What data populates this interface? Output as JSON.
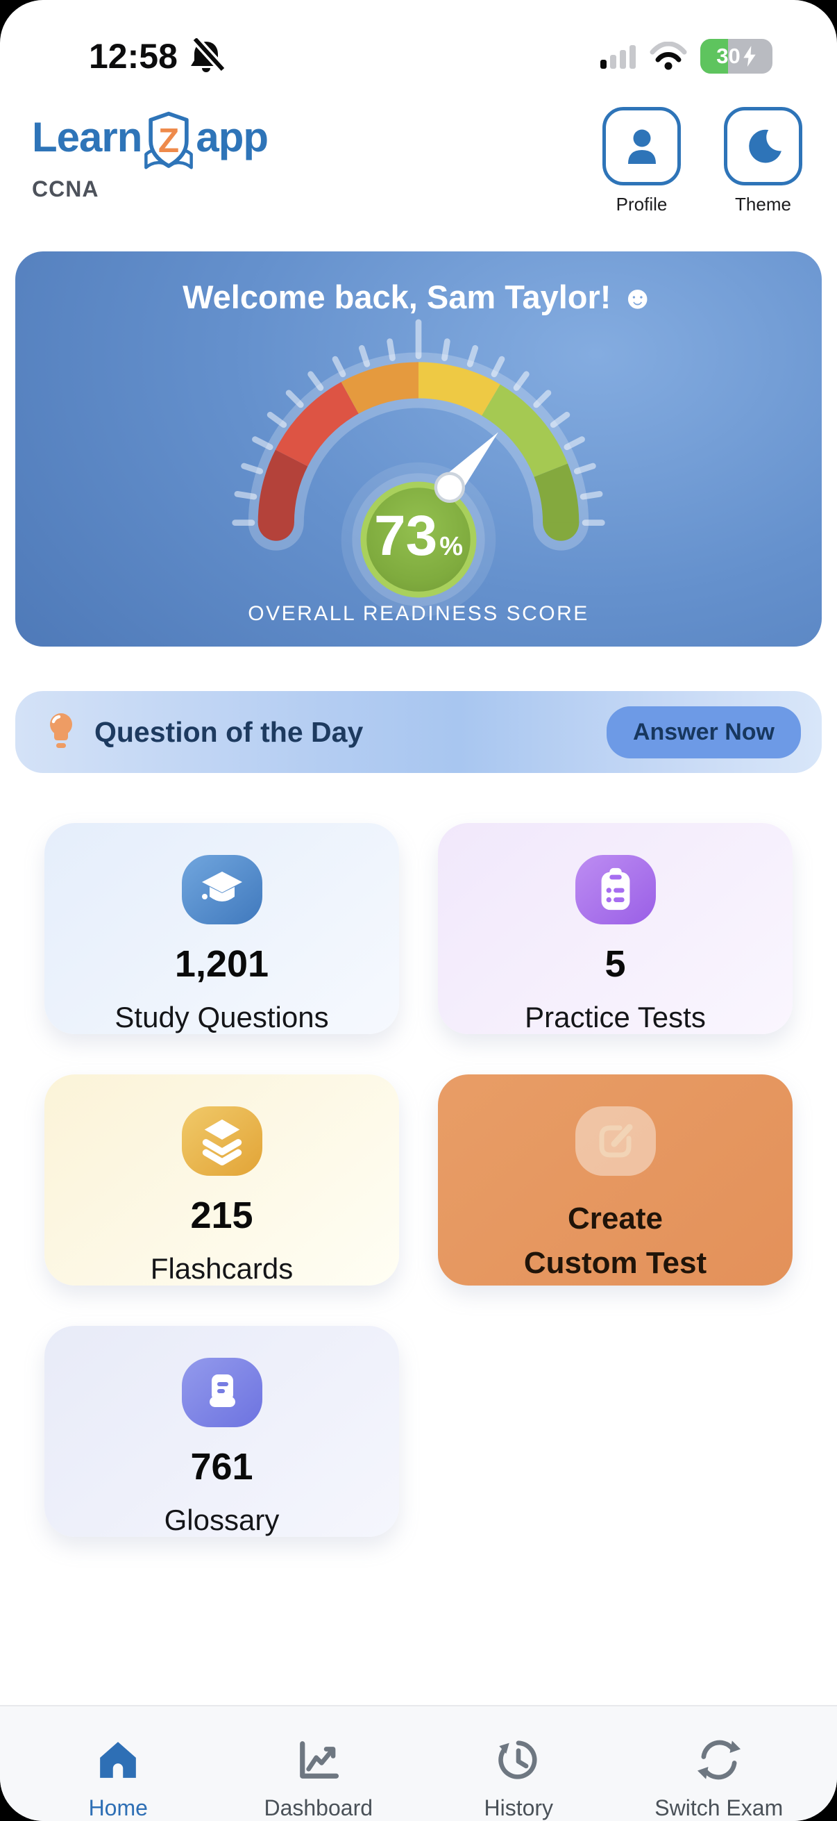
{
  "status_bar": {
    "time": "12:58",
    "battery_percent": "30"
  },
  "header": {
    "logo_part1": "Learn",
    "logo_z": "Z",
    "logo_part2": "app",
    "exam_name": "CCNA",
    "profile_label": "Profile",
    "theme_label": "Theme"
  },
  "welcome": {
    "title": "Welcome back, Sam Taylor!",
    "emoji": "☻"
  },
  "chart_data": {
    "type": "gauge",
    "title": "OVERALL READINESS SCORE",
    "value": 73,
    "unit": "%",
    "min": 0,
    "max": 100,
    "ticks": 21,
    "segments": [
      {
        "to": 15,
        "color": "#b4423a"
      },
      {
        "to": 34,
        "color": "#dd5444"
      },
      {
        "to": 50,
        "color": "#e59a3e"
      },
      {
        "to": 67,
        "color": "#eec944"
      },
      {
        "to": 88,
        "color": "#a5c952"
      },
      {
        "to": 100,
        "color": "#84a93e"
      }
    ]
  },
  "question_of_day": {
    "title": "Question of the Day",
    "button_label": "Answer Now"
  },
  "cards": [
    {
      "value": "1,201",
      "label": "Study Questions"
    },
    {
      "value": "5",
      "label": "Practice Tests"
    },
    {
      "value": "215",
      "label": "Flashcards"
    },
    {
      "label_line1": "Create",
      "label_line2": "Custom Test"
    },
    {
      "value": "761",
      "label": "Glossary"
    }
  ],
  "bottom_nav": {
    "items": [
      {
        "label": "Home"
      },
      {
        "label": "Dashboard"
      },
      {
        "label": "History"
      },
      {
        "label": "Switch Exam"
      }
    ]
  },
  "palette": {
    "primary_blue": "#2e74b8",
    "navy_text": "#1d3a5f",
    "answer_button_bg": "#6d9ae6",
    "orange_card": "#e6975f",
    "battery_green": "#5ec45e",
    "logo_z_orange": "#ee8a4b"
  }
}
